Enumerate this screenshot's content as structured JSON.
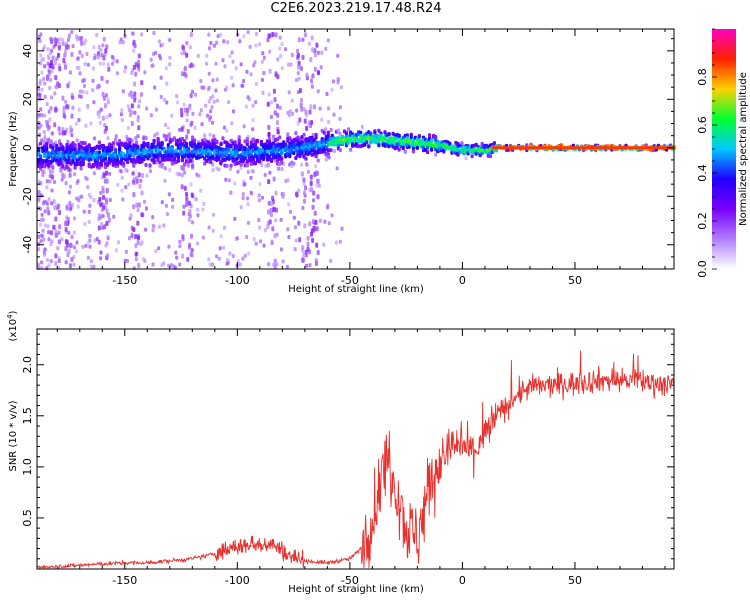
{
  "title": "C2E6.2023.219.17.48.R24",
  "chart_data": [
    {
      "type": "heatmap",
      "xlabel": "Height of straight line (km)",
      "ylabel": "Frequency (Hz)",
      "xlim": [
        -189,
        94
      ],
      "ylim": [
        -50,
        49
      ],
      "x_ticks": [
        -150,
        -100,
        -50,
        0,
        50
      ],
      "y_ticks": [
        -40,
        -20,
        0,
        20,
        40
      ],
      "colorbar": {
        "label": "Normalized spectral amplitude",
        "range": [
          0,
          1
        ],
        "ticks": [
          0.0,
          0.2,
          0.4,
          0.6,
          0.8
        ],
        "colors": [
          "#ffffff",
          "#b07cff",
          "#7a00ff",
          "#2000ff",
          "#00c8ff",
          "#00ff30",
          "#ffd000",
          "#ff2000",
          "#ff00c0"
        ]
      },
      "center_line_hz": [
        {
          "x": -189,
          "f": -3
        },
        {
          "x": -160,
          "f": -3
        },
        {
          "x": -130,
          "f": -1
        },
        {
          "x": -110,
          "f": -2
        },
        {
          "x": -95,
          "f": -2
        },
        {
          "x": -80,
          "f": -1
        },
        {
          "x": -65,
          "f": 1
        },
        {
          "x": -55,
          "f": 3
        },
        {
          "x": -45,
          "f": 4
        },
        {
          "x": -30,
          "f": 3
        },
        {
          "x": -20,
          "f": 2
        },
        {
          "x": -10,
          "f": 1
        },
        {
          "x": 0,
          "f": -1
        },
        {
          "x": 10,
          "f": -1
        },
        {
          "x": 15,
          "f": 0
        },
        {
          "x": 94,
          "f": 0
        }
      ]
    },
    {
      "type": "line",
      "xlabel": "Height of straight line (km)",
      "ylabel": "SNR (10 * v/v)",
      "y_scale_label": "(x10",
      "y_scale_exp": "4",
      "y_scale_close": ")",
      "xlim": [
        -189,
        94
      ],
      "ylim": [
        0,
        2.35
      ],
      "x_ticks": [
        -150,
        -100,
        -50,
        0,
        50
      ],
      "y_ticks": [
        0.5,
        1.0,
        1.5,
        2.0
      ],
      "line_color": "#e8302c",
      "series_points": [
        {
          "x": -189,
          "y": 0.02
        },
        {
          "x": -175,
          "y": 0.03
        },
        {
          "x": -160,
          "y": 0.05
        },
        {
          "x": -150,
          "y": 0.06
        },
        {
          "x": -140,
          "y": 0.06
        },
        {
          "x": -130,
          "y": 0.08
        },
        {
          "x": -120,
          "y": 0.1
        },
        {
          "x": -110,
          "y": 0.15
        },
        {
          "x": -100,
          "y": 0.22
        },
        {
          "x": -90,
          "y": 0.25
        },
        {
          "x": -85,
          "y": 0.25
        },
        {
          "x": -80,
          "y": 0.18
        },
        {
          "x": -75,
          "y": 0.12
        },
        {
          "x": -70,
          "y": 0.08
        },
        {
          "x": -60,
          "y": 0.06
        },
        {
          "x": -50,
          "y": 0.1
        },
        {
          "x": -45,
          "y": 0.2
        },
        {
          "x": -40,
          "y": 0.5
        },
        {
          "x": -36,
          "y": 0.9
        },
        {
          "x": -33,
          "y": 1.1
        },
        {
          "x": -28,
          "y": 0.7
        },
        {
          "x": -25,
          "y": 0.4
        },
        {
          "x": -20,
          "y": 0.3
        },
        {
          "x": -15,
          "y": 0.8
        },
        {
          "x": -10,
          "y": 1.05
        },
        {
          "x": -5,
          "y": 1.2
        },
        {
          "x": 0,
          "y": 1.2
        },
        {
          "x": 5,
          "y": 1.15
        },
        {
          "x": 10,
          "y": 1.3
        },
        {
          "x": 15,
          "y": 1.5
        },
        {
          "x": 20,
          "y": 1.6
        },
        {
          "x": 25,
          "y": 1.72
        },
        {
          "x": 30,
          "y": 1.78
        },
        {
          "x": 40,
          "y": 1.8
        },
        {
          "x": 50,
          "y": 1.82
        },
        {
          "x": 60,
          "y": 1.85
        },
        {
          "x": 70,
          "y": 1.85
        },
        {
          "x": 80,
          "y": 1.84
        },
        {
          "x": 94,
          "y": 1.8
        }
      ]
    }
  ]
}
